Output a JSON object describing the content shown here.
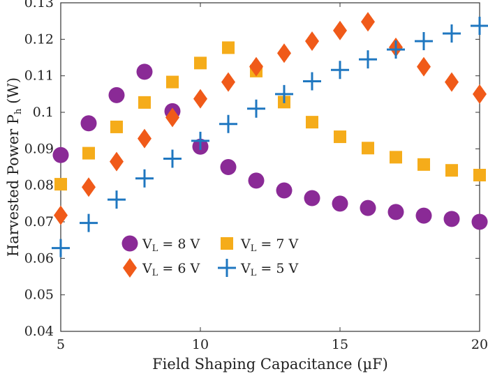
{
  "chart_data": {
    "type": "scatter",
    "title": "",
    "xlabel": "Field Shaping Capacitance (µF)",
    "ylabel": "Harvested Power P",
    "ylabel_sub": "h",
    "ylabel_unit": " (W)",
    "xlim": [
      5,
      20
    ],
    "ylim": [
      0.04,
      0.13
    ],
    "xticks": [
      5,
      10,
      15,
      20
    ],
    "yticks": [
      0.04,
      0.05,
      0.06,
      0.07,
      0.08,
      0.09,
      0.1,
      0.11,
      0.12,
      0.13
    ],
    "ytick_labels": [
      "0.04",
      "0.05",
      "0.06",
      "0.07",
      "0.08",
      "0.09",
      "0.1",
      "0.11",
      "0.12",
      "0.13"
    ],
    "grid": false,
    "legend_position": "bottom-left",
    "x": [
      5,
      6,
      7,
      8,
      9,
      10,
      11,
      12,
      13,
      14,
      15,
      16,
      17,
      18,
      19,
      20
    ],
    "series": [
      {
        "name": "V",
        "sub": "L",
        "suffix": " = 8 V",
        "marker": "circle",
        "color": "#8a2a96",
        "values": [
          0.0883,
          0.097,
          0.1047,
          0.1111,
          0.1003,
          0.0906,
          0.085,
          0.0813,
          0.0786,
          0.0765,
          0.075,
          0.0738,
          0.0727,
          0.0717,
          0.0708,
          0.07
        ]
      },
      {
        "name": "V",
        "sub": "L",
        "suffix": " = 7 V",
        "marker": "square",
        "color": "#f5ac1a",
        "values": [
          0.0803,
          0.0888,
          0.096,
          0.1027,
          0.1083,
          0.1135,
          0.1177,
          0.1113,
          0.1028,
          0.0973,
          0.0933,
          0.0902,
          0.0877,
          0.0857,
          0.0841,
          0.0828
        ]
      },
      {
        "name": "V",
        "sub": "L",
        "suffix": " = 6 V",
        "marker": "diamond",
        "color": "#f05a19",
        "values": [
          0.0718,
          0.0795,
          0.0865,
          0.0928,
          0.0986,
          0.1037,
          0.1083,
          0.1125,
          0.1162,
          0.1195,
          0.1224,
          0.1248,
          0.1178,
          0.1125,
          0.1083,
          0.105
        ]
      },
      {
        "name": "V",
        "sub": "L",
        "suffix": " = 5 V",
        "marker": "plus",
        "color": "#1f77c0",
        "values": [
          0.0628,
          0.0697,
          0.0761,
          0.0819,
          0.0873,
          0.0922,
          0.0968,
          0.101,
          0.105,
          0.1085,
          0.1116,
          0.1145,
          0.1172,
          0.1195,
          0.1216,
          0.1237
        ]
      }
    ]
  }
}
